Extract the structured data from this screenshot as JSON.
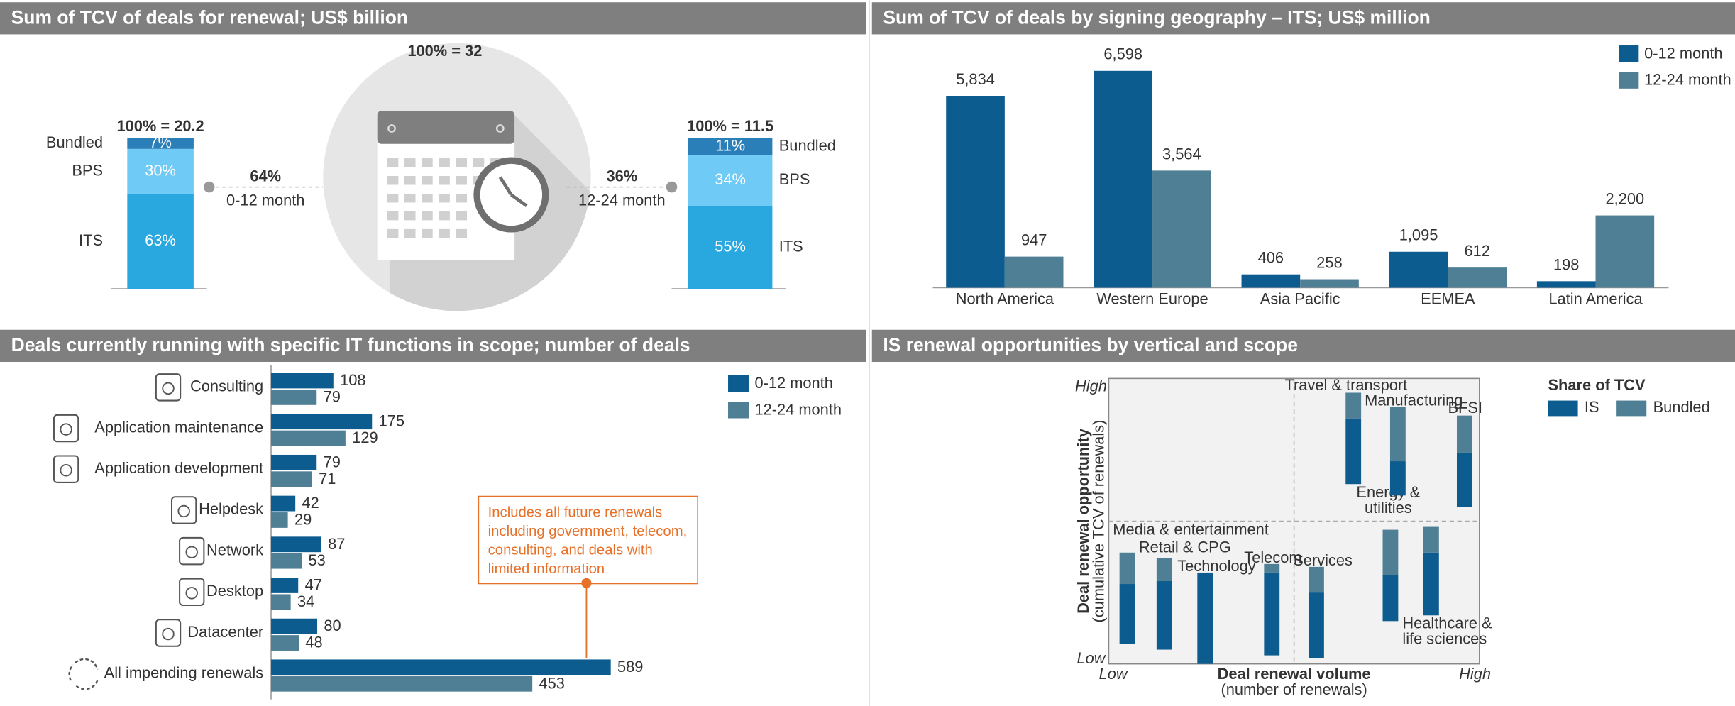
{
  "chart_data": [
    {
      "type": "stacked",
      "title": "Sum of TCV of deals for renewal; US$ billion",
      "total_label": "100% = 32",
      "categories": [
        "0-12 month",
        "12-24 month"
      ],
      "category_totals": [
        "100% = 20.2",
        "100% = 11.5"
      ],
      "category_shares": [
        "64%",
        "36%"
      ],
      "ylim": [
        0,
        100
      ],
      "series": [
        {
          "name": "ITS",
          "color": "#29a8e0",
          "values": [
            63,
            55
          ],
          "value_labels": [
            "63%",
            "55%"
          ]
        },
        {
          "name": "BPS",
          "color": "#6fcaf5",
          "values": [
            30,
            34
          ],
          "value_labels": [
            "30%",
            "34%"
          ]
        },
        {
          "name": "Bundled",
          "color": "#2a7fb8",
          "values": [
            7,
            11
          ],
          "value_labels": [
            "7%",
            "11%"
          ]
        }
      ]
    },
    {
      "type": "bar",
      "title": "Sum of TCV of deals by signing geography – ITS; US$ million",
      "categories": [
        "North America",
        "Western Europe",
        "Asia Pacific",
        "EEMEA",
        "Latin America"
      ],
      "ylim": [
        0,
        7000
      ],
      "legend": "top-right",
      "series": [
        {
          "name": "0-12 month",
          "color": "#0d5c8f",
          "values": [
            5834,
            6598,
            406,
            1095,
            198
          ],
          "value_labels": [
            "5,834",
            "6,598",
            "406",
            "1,095",
            "198"
          ]
        },
        {
          "name": "12-24 month",
          "color": "#4f7f95",
          "values": [
            947,
            3564,
            258,
            612,
            2200
          ],
          "value_labels": [
            "947",
            "3,564",
            "258",
            "612",
            "2,200"
          ]
        }
      ]
    },
    {
      "type": "barh",
      "title": "Deals currently running with specific IT functions in scope; number of deals",
      "categories": [
        "Consulting",
        "Application maintenance",
        "Application development",
        "Helpdesk",
        "Network",
        "Desktop",
        "Datacenter",
        "All impending renewals"
      ],
      "xlim": [
        0,
        600
      ],
      "legend": "top-right",
      "annotation": "Includes all future renewals including government, telecom, consulting, and deals with limited information",
      "series": [
        {
          "name": "0-12 month",
          "color": "#0d5c8f",
          "values": [
            108,
            175,
            79,
            42,
            87,
            47,
            80,
            589
          ]
        },
        {
          "name": "12-24 month",
          "color": "#4f7f95",
          "values": [
            79,
            129,
            71,
            29,
            53,
            34,
            48,
            453
          ]
        }
      ]
    },
    {
      "type": "quadrant",
      "title": "IS renewal opportunities by vertical and scope",
      "xlabel": "Deal renewal volume",
      "xlabel_sub": "(number of renewals)",
      "ylabel": "Deal renewal opportunity",
      "ylabel_sub": "(cumulative TCV of renewals)",
      "xlim": [
        0,
        10
      ],
      "ylim": [
        0,
        10
      ],
      "xticks": [
        {
          "value": 0,
          "label": "Low"
        },
        {
          "value": 10,
          "label": "High"
        }
      ],
      "yticks": [
        {
          "value": 0,
          "label": "Low"
        },
        {
          "value": 10,
          "label": "High"
        }
      ],
      "legend_title": "Share of TCV",
      "categories": [
        "Media & entertainment",
        "Retail & CPG",
        "Technology",
        "Telecom",
        "Services",
        "Energy & utilities",
        "Healthcare & life sciences",
        "Travel & transport",
        "Manufacturing",
        "BFSI"
      ],
      "x": [
        0.5,
        1.5,
        2.6,
        4.4,
        5.6,
        7.6,
        8.7,
        6.6,
        7.8,
        9.6
      ],
      "base": [
        0.7,
        0.5,
        0,
        0.3,
        0.2,
        1.5,
        1.7,
        6.3,
        5.9,
        5.5
      ],
      "series": [
        {
          "name": "IS",
          "color": "#0d5c8f",
          "values": [
            2.1,
            2.4,
            3.2,
            2.9,
            2.3,
            1.6,
            2.2,
            2.3,
            1.2,
            1.9
          ]
        },
        {
          "name": "Bundled",
          "color": "#4f7f95",
          "values": [
            1.1,
            0.8,
            0,
            0.3,
            0.9,
            1.6,
            0.9,
            0.9,
            1.9,
            1.3
          ]
        }
      ]
    }
  ]
}
